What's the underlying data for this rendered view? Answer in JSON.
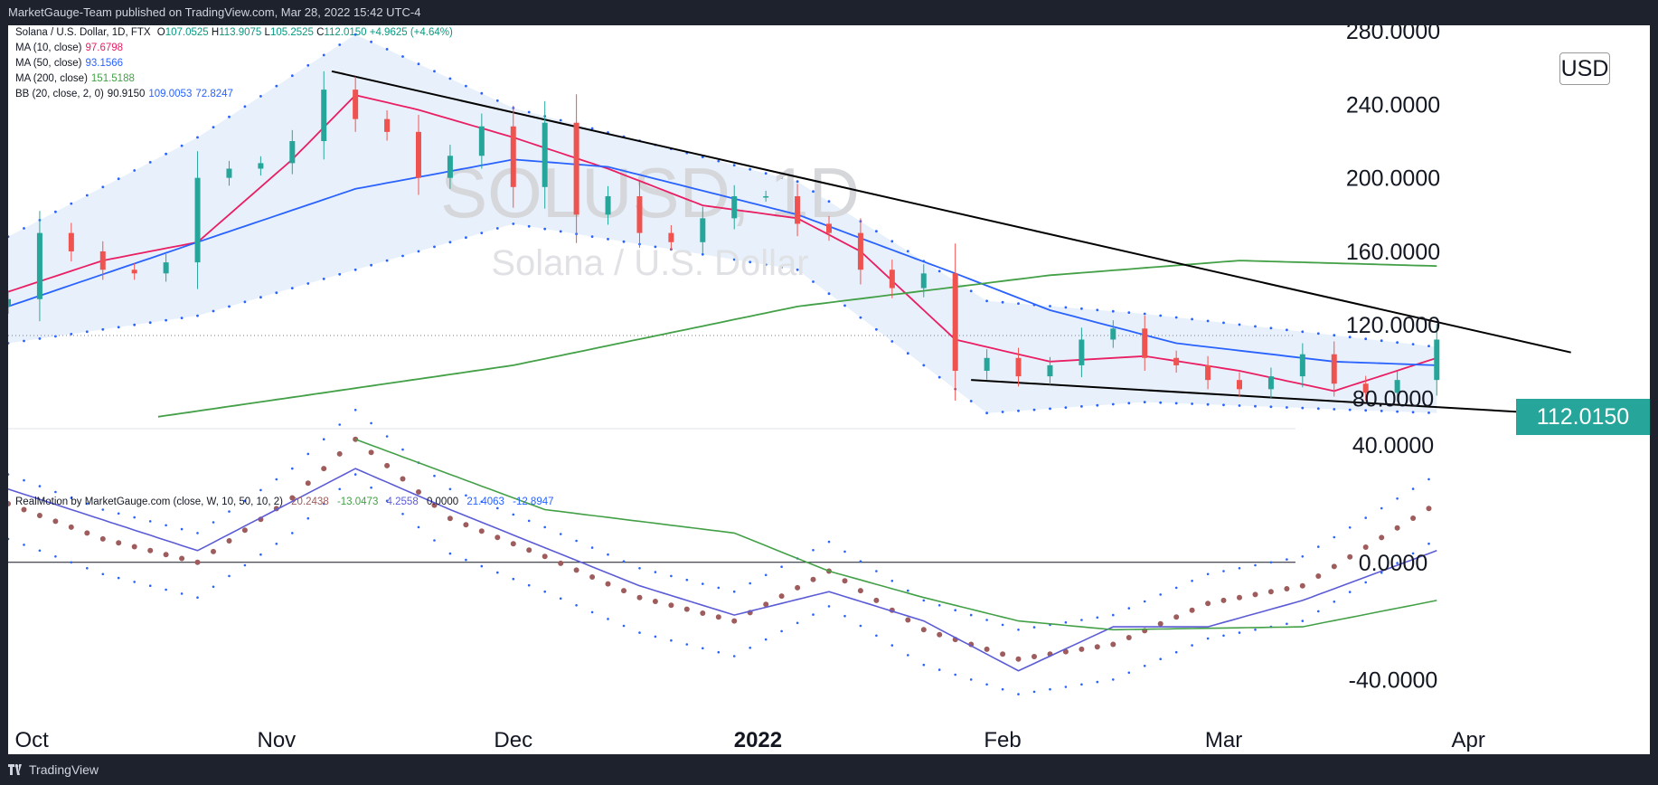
{
  "header": {
    "published": "MarketGauge-Team published on TradingView.com, Mar 28, 2022 15:42 UTC-4"
  },
  "footer": {
    "brand": "TradingView"
  },
  "watermark": {
    "symbol": "SOLUSD, 1D",
    "name": "Solana / U.S. Dollar"
  },
  "legend": {
    "symbol": "Solana / U.S. Dollar, 1D, FTX",
    "ohlc": {
      "o_label": "O",
      "o": "107.0525",
      "h_label": "H",
      "h": "113.9075",
      "l_label": "L",
      "l": "105.2525",
      "c_label": "C",
      "c": "112.0150",
      "change": "+4.9625 (+4.64%)"
    },
    "ma10": {
      "label": "MA (10, close)",
      "value": "97.6798",
      "color": "#e91e63"
    },
    "ma50": {
      "label": "MA (50, close)",
      "value": "93.1566",
      "color": "#2962ff"
    },
    "ma200": {
      "label": "MA (200, close)",
      "value": "151.5188",
      "color": "#43a047"
    },
    "bb": {
      "label": "BB (20, close, 2, 0)",
      "v1": "90.9150",
      "v2": "109.0053",
      "v3": "72.8247",
      "color": "#2962ff"
    }
  },
  "realmotion": {
    "label": "RealMotion by MarketGauge.com (close, W, 10, 50, 10, 2)",
    "v1": "20.2438",
    "v2": "-13.0473",
    "v3": "4.2558",
    "v4": "0.0000",
    "v5": "21.4063",
    "v6": "-12.8947"
  },
  "last_price_tag": "112.0150",
  "currency": "USD",
  "colors": {
    "up": "#26a69a",
    "down": "#ef5350",
    "bb_fill": "#e8f1fb",
    "realmotion_dot": "#9e5c5c"
  },
  "chart_data": [
    {
      "type": "candlestick",
      "title": "SOLUSD, 1D",
      "subtitle": "Solana / U.S. Dollar",
      "y_ticks": [
        "280.0000",
        "240.0000",
        "200.0000",
        "160.0000",
        "120.0000",
        "80.0000"
      ],
      "ylim": [
        64,
        283
      ],
      "y_scale": "linear",
      "x_tick_labels": [
        "Oct",
        "Nov",
        "Dec",
        "2022",
        "Feb",
        "Mar",
        "Apr"
      ],
      "x_range": [
        "2021-09-28",
        "2022-04-24"
      ],
      "series": [
        {
          "name": "Solana / U.S. Dollar",
          "kind": "ohlc",
          "color_up": "#26a69a",
          "color_down": "#ef5350",
          "x": [
            "2021-09-28",
            "2021-10-02",
            "2021-10-06",
            "2021-10-10",
            "2021-10-14",
            "2021-10-18",
            "2021-10-22",
            "2021-10-26",
            "2021-10-30",
            "2021-11-03",
            "2021-11-07",
            "2021-11-11",
            "2021-11-15",
            "2021-11-19",
            "2021-11-23",
            "2021-11-27",
            "2021-12-01",
            "2021-12-05",
            "2021-12-09",
            "2021-12-13",
            "2021-12-17",
            "2021-12-21",
            "2021-12-25",
            "2021-12-29",
            "2022-01-02",
            "2022-01-06",
            "2022-01-10",
            "2022-01-14",
            "2022-01-18",
            "2022-01-22",
            "2022-01-26",
            "2022-01-30",
            "2022-02-03",
            "2022-02-07",
            "2022-02-11",
            "2022-02-15",
            "2022-02-19",
            "2022-02-23",
            "2022-02-27",
            "2022-03-03",
            "2022-03-07",
            "2022-03-11",
            "2022-03-15",
            "2022-03-19",
            "2022-03-23",
            "2022-03-28"
          ],
          "close": [
            134,
            170,
            160,
            150,
            148,
            154,
            200,
            205,
            208,
            220,
            248,
            232,
            225,
            200,
            212,
            228,
            195,
            230,
            180,
            190,
            170,
            165,
            178,
            190,
            190,
            175,
            170,
            150,
            140,
            148,
            95,
            102,
            92,
            98,
            112,
            118,
            102,
            98,
            90,
            85,
            92,
            104,
            88,
            83,
            90,
            112
          ]
        },
        {
          "name": "MA (10, close)",
          "color": "#e91e63",
          "x": [
            "2021-09-28",
            "2021-10-10",
            "2021-10-22",
            "2021-11-03",
            "2021-11-11",
            "2021-11-19",
            "2021-12-01",
            "2021-12-13",
            "2021-12-25",
            "2022-01-06",
            "2022-01-14",
            "2022-01-26",
            "2022-02-07",
            "2022-02-19",
            "2022-03-03",
            "2022-03-15",
            "2022-03-28"
          ],
          "values": [
            138,
            155,
            165,
            210,
            245,
            237,
            222,
            205,
            185,
            178,
            160,
            112,
            100,
            103,
            95,
            84,
            102
          ]
        },
        {
          "name": "MA (50, close)",
          "color": "#2962ff",
          "x": [
            "2021-09-28",
            "2021-10-22",
            "2021-11-11",
            "2021-12-01",
            "2021-12-13",
            "2022-01-06",
            "2022-01-26",
            "2022-02-07",
            "2022-02-23",
            "2022-03-15",
            "2022-03-28"
          ],
          "values": [
            130,
            165,
            194,
            210,
            206,
            180,
            148,
            128,
            110,
            100,
            98
          ]
        },
        {
          "name": "MA (200, close)",
          "color": "#43a047",
          "x": [
            "2021-10-17",
            "2021-12-01",
            "2022-01-06",
            "2022-02-07",
            "2022-03-03",
            "2022-03-28"
          ],
          "values": [
            70,
            98,
            130,
            147,
            155,
            152
          ]
        },
        {
          "name": "BB upper",
          "color": "#2962ff",
          "x": [
            "2021-09-28",
            "2021-10-22",
            "2021-11-11",
            "2021-12-01",
            "2022-01-06",
            "2022-01-30",
            "2022-02-19",
            "2022-03-28"
          ],
          "values": [
            168,
            222,
            278,
            238,
            198,
            133,
            126,
            108
          ]
        },
        {
          "name": "BB lower",
          "color": "#2962ff",
          "x": [
            "2021-09-28",
            "2021-10-22",
            "2021-11-11",
            "2021-12-01",
            "2022-01-06",
            "2022-01-30",
            "2022-02-19",
            "2022-03-28"
          ],
          "values": [
            110,
            125,
            150,
            175,
            150,
            72,
            78,
            72
          ]
        },
        {
          "name": "Trendline upper",
          "color": "#000000",
          "x": [
            "2021-11-08",
            "2022-04-14"
          ],
          "values": [
            258,
            105
          ]
        },
        {
          "name": "Trendline lower",
          "color": "#000000",
          "x": [
            "2022-01-28",
            "2022-04-14"
          ],
          "values": [
            90,
            71
          ]
        }
      ],
      "last_value": 112.015
    },
    {
      "type": "line",
      "title": "RealMotion by MarketGauge.com (close, W, 10, 50, 10, 2)",
      "y_ticks": [
        "40.0000",
        "0.0000",
        "-40.0000"
      ],
      "ylim": [
        -55,
        45
      ],
      "x_range": [
        "2021-09-28",
        "2022-04-24"
      ],
      "series": [
        {
          "name": "momentum dots",
          "color": "#9e5c5c",
          "x": [
            "2021-09-28",
            "2021-10-10",
            "2021-10-22",
            "2021-11-03",
            "2021-11-11",
            "2021-11-23",
            "2021-12-05",
            "2021-12-17",
            "2021-12-29",
            "2022-01-10",
            "2022-01-22",
            "2022-02-03",
            "2022-02-15",
            "2022-02-27",
            "2022-03-11",
            "2022-03-28"
          ],
          "values": [
            20,
            8,
            0,
            22,
            42,
            15,
            2,
            -12,
            -20,
            -3,
            -23,
            -33,
            -28,
            -14,
            -8,
            20
          ]
        },
        {
          "name": "fast line",
          "color": "#5b5bd6",
          "x": [
            "2021-09-28",
            "2021-10-22",
            "2021-11-11",
            "2021-11-23",
            "2021-12-05",
            "2021-12-17",
            "2021-12-29",
            "2022-01-10",
            "2022-01-22",
            "2022-02-03",
            "2022-02-15",
            "2022-02-27",
            "2022-03-11",
            "2022-03-28"
          ],
          "values": [
            25,
            4,
            32,
            18,
            5,
            -8,
            -18,
            -10,
            -20,
            -37,
            -22,
            -22,
            -13,
            4
          ]
        },
        {
          "name": "slow line",
          "color": "#43a047",
          "x": [
            "2021-11-11",
            "2021-12-05",
            "2021-12-29",
            "2022-01-10",
            "2022-01-22",
            "2022-02-03",
            "2022-02-15",
            "2022-03-11",
            "2022-03-28"
          ],
          "values": [
            42,
            18,
            10,
            -3,
            -12,
            -20,
            -23,
            -22,
            -13
          ]
        }
      ]
    }
  ]
}
